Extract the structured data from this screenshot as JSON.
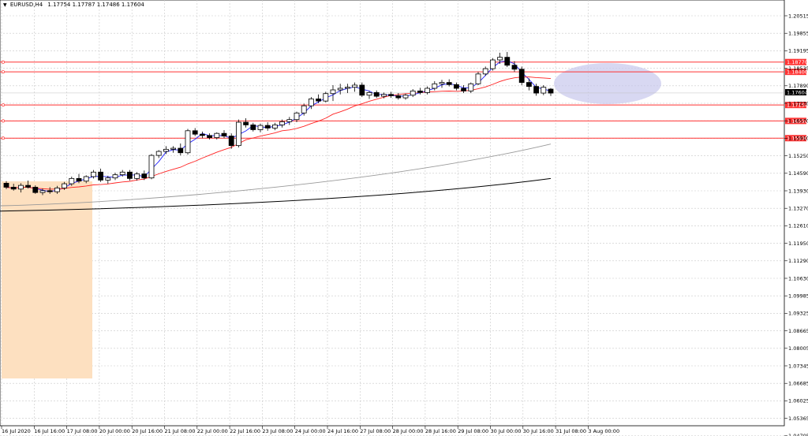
{
  "window": {
    "symbol": "EURUSD,H4",
    "ohlc": "1.17754 1.17787 1.17486 1.17604",
    "current_price": "1.17604"
  },
  "price_axis": {
    "labels": [
      "1.20515",
      "1.19855",
      "1.19195",
      "1.18535",
      "1.17890",
      "1.17230",
      "1.16570",
      "1.15910",
      "1.15250",
      "1.14590",
      "1.13930",
      "1.13270",
      "1.12610",
      "1.11950",
      "1.11290",
      "1.10630",
      "1.09985",
      "1.09325",
      "1.08665",
      "1.08005",
      "1.07345",
      "1.06685",
      "1.06025",
      "1.05365",
      "1.04705"
    ]
  },
  "time_axis": {
    "labels": [
      "16 Jul 2020",
      "16 Jul 16:00",
      "17 Jul 08:00",
      "20 Jul 00:00",
      "20 Jul 16:00",
      "21 Jul 08:00",
      "22 Jul 00:00",
      "22 Jul 16:00",
      "23 Jul 08:00",
      "24 Jul 00:00",
      "24 Jul 16:00",
      "27 Jul 08:00",
      "28 Jul 00:00",
      "28 Jul 16:00",
      "29 Jul 08:00",
      "30 Jul 00:00",
      "30 Jul 16:00",
      "31 Jul 08:00",
      "3 Aug 00:00"
    ]
  },
  "horizontal_lines": [
    {
      "label": "1.18770",
      "price": 1.1877,
      "color": "#ff3333"
    },
    {
      "label": "1.18400",
      "price": 1.184,
      "color": "#ff3333"
    },
    {
      "label": "1.17150",
      "price": 1.1715,
      "color": "#ff3333"
    },
    {
      "label": "1.16550",
      "price": 1.1655,
      "color": "#ff3333"
    },
    {
      "label": "1.15900",
      "price": 1.159,
      "color": "#ff3333"
    }
  ],
  "colors": {
    "bull": "#ffffff",
    "bear": "#000000",
    "grid": "#c8c8c8",
    "ma_fast": "#2222ff",
    "ma_mid": "#ff2222",
    "ma_slow_grey": "#999999",
    "ma_slow_black": "#000000",
    "highlight_box": "#fde0c0",
    "ellipse": "#c8c8ec"
  },
  "candles": [
    [
      1.142,
      1.1428,
      1.1398,
      1.1405
    ],
    [
      1.1405,
      1.1418,
      1.1392,
      1.1398
    ],
    [
      1.1398,
      1.142,
      1.1385,
      1.1412
    ],
    [
      1.1412,
      1.143,
      1.14,
      1.1405
    ],
    [
      1.1405,
      1.1412,
      1.138,
      1.1385
    ],
    [
      1.1385,
      1.14,
      1.1375,
      1.1392
    ],
    [
      1.1392,
      1.1405,
      1.138,
      1.1388
    ],
    [
      1.1388,
      1.141,
      1.138,
      1.1402
    ],
    [
      1.1402,
      1.1425,
      1.1395,
      1.1418
    ],
    [
      1.1418,
      1.1445,
      1.141,
      1.1438
    ],
    [
      1.1438,
      1.1455,
      1.142,
      1.1428
    ],
    [
      1.1428,
      1.145,
      1.142,
      1.1445
    ],
    [
      1.1445,
      1.147,
      1.1438,
      1.1462
    ],
    [
      1.1462,
      1.1475,
      1.1425,
      1.1432
    ],
    [
      1.1432,
      1.1448,
      1.1418,
      1.144
    ],
    [
      1.144,
      1.146,
      1.1432,
      1.1452
    ],
    [
      1.1452,
      1.147,
      1.1445,
      1.1462
    ],
    [
      1.1462,
      1.147,
      1.143,
      1.1438
    ],
    [
      1.1438,
      1.1462,
      1.143,
      1.1455
    ],
    [
      1.1455,
      1.1468,
      1.1432,
      1.144
    ],
    [
      1.144,
      1.153,
      1.1435,
      1.1525
    ],
    [
      1.1525,
      1.1545,
      1.1515,
      1.154
    ],
    [
      1.154,
      1.156,
      1.153,
      1.1548
    ],
    [
      1.1548,
      1.156,
      1.1535,
      1.1552
    ],
    [
      1.1552,
      1.157,
      1.1525,
      1.1535
    ],
    [
      1.1535,
      1.1625,
      1.1528,
      1.1618
    ],
    [
      1.1618,
      1.1628,
      1.1598,
      1.1605
    ],
    [
      1.1605,
      1.1615,
      1.159,
      1.16
    ],
    [
      1.16,
      1.1608,
      1.1585,
      1.1592
    ],
    [
      1.1592,
      1.1612,
      1.1585,
      1.1608
    ],
    [
      1.1608,
      1.162,
      1.159,
      1.1598
    ],
    [
      1.1598,
      1.1608,
      1.155,
      1.1562
    ],
    [
      1.1562,
      1.166,
      1.1555,
      1.165
    ],
    [
      1.165,
      1.1665,
      1.163,
      1.164
    ],
    [
      1.164,
      1.1648,
      1.1615,
      1.1622
    ],
    [
      1.1622,
      1.1645,
      1.1612,
      1.1638
    ],
    [
      1.1638,
      1.165,
      1.1618,
      1.1628
    ],
    [
      1.1628,
      1.1648,
      1.162,
      1.164
    ],
    [
      1.164,
      1.166,
      1.163,
      1.1652
    ],
    [
      1.1652,
      1.167,
      1.164,
      1.166
    ],
    [
      1.166,
      1.169,
      1.165,
      1.1685
    ],
    [
      1.1685,
      1.172,
      1.1675,
      1.1712
    ],
    [
      1.1712,
      1.1745,
      1.17,
      1.1738
    ],
    [
      1.1738,
      1.1755,
      1.1722,
      1.173
    ],
    [
      1.173,
      1.1765,
      1.1725,
      1.1758
    ],
    [
      1.1758,
      1.179,
      1.173,
      1.1772
    ],
    [
      1.1772,
      1.1795,
      1.1755,
      1.1778
    ],
    [
      1.1778,
      1.1795,
      1.176,
      1.1782
    ],
    [
      1.1782,
      1.18,
      1.1765,
      1.179
    ],
    [
      1.179,
      1.18,
      1.1745,
      1.1752
    ],
    [
      1.1752,
      1.1768,
      1.1738,
      1.1762
    ],
    [
      1.1762,
      1.177,
      1.1742,
      1.1748
    ],
    [
      1.1748,
      1.1762,
      1.174,
      1.1755
    ],
    [
      1.1755,
      1.1765,
      1.1742,
      1.175
    ],
    [
      1.175,
      1.176,
      1.1735,
      1.1742
    ],
    [
      1.1742,
      1.1758,
      1.1735,
      1.1752
    ],
    [
      1.1752,
      1.1775,
      1.1745,
      1.1768
    ],
    [
      1.1768,
      1.178,
      1.1755,
      1.1762
    ],
    [
      1.1762,
      1.1785,
      1.1755,
      1.1778
    ],
    [
      1.1778,
      1.1805,
      1.177,
      1.1795
    ],
    [
      1.1795,
      1.181,
      1.178,
      1.18
    ],
    [
      1.18,
      1.1812,
      1.1785,
      1.1792
    ],
    [
      1.1792,
      1.18,
      1.177,
      1.1778
    ],
    [
      1.1778,
      1.179,
      1.176,
      1.1768
    ],
    [
      1.1768,
      1.18,
      1.176,
      1.1795
    ],
    [
      1.1795,
      1.184,
      1.179,
      1.1832
    ],
    [
      1.1832,
      1.186,
      1.1825,
      1.1852
    ],
    [
      1.1852,
      1.1892,
      1.1845,
      1.1885
    ],
    [
      1.1885,
      1.1912,
      1.187,
      1.1895
    ],
    [
      1.1895,
      1.1915,
      1.1858,
      1.1865
    ],
    [
      1.1865,
      1.188,
      1.184,
      1.185
    ],
    [
      1.185,
      1.186,
      1.179,
      1.18
    ],
    [
      1.18,
      1.1815,
      1.177,
      1.1785
    ],
    [
      1.1785,
      1.1795,
      1.175,
      1.176
    ],
    [
      1.176,
      1.179,
      1.1752,
      1.1782
    ],
    [
      1.1775,
      1.1779,
      1.1749,
      1.176
    ]
  ]
}
